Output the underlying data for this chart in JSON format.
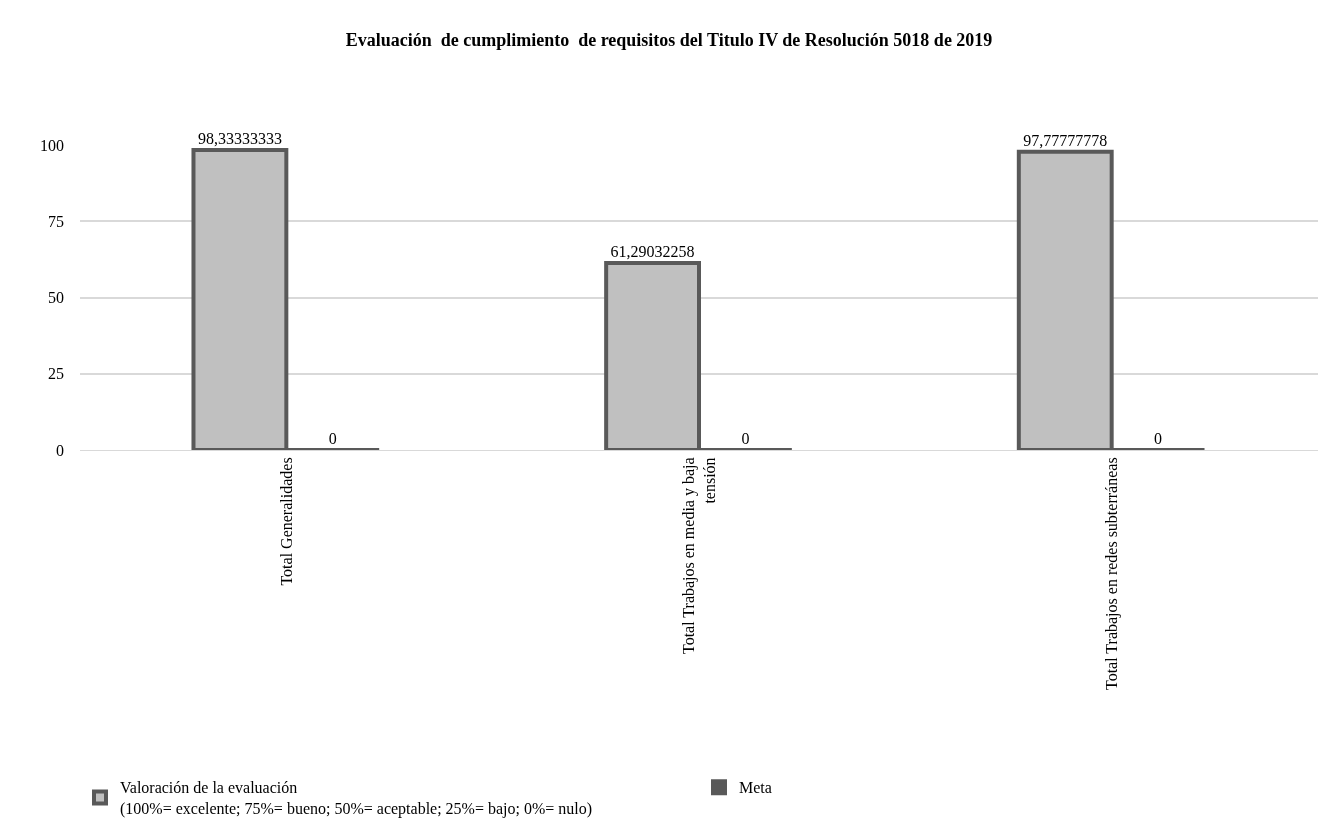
{
  "chart_data": {
    "type": "bar",
    "title": "Evaluación  de cumplimiento  de requisitos del Titulo IV de Resolución 5018 de 2019",
    "categories": [
      "Total Generalidades",
      "Total Trabajos en media y baja\ntensión",
      "Total Trabajos en redes subterráneas"
    ],
    "series": [
      {
        "name": "Valoración de la evaluación\n(100%= excelente; 75%= bueno; 50%= aceptable; 25%= bajo; 0%= nulo)",
        "color": "#c0c0c0",
        "values": [
          98.33333333,
          61.29032258,
          97.77777778
        ],
        "value_labels": [
          "98,33333333",
          "61,29032258",
          "97,77777778"
        ]
      },
      {
        "name": "Meta",
        "color": "#595959",
        "values": [
          0,
          0,
          0
        ],
        "value_labels": [
          "0",
          "0",
          "0"
        ]
      }
    ],
    "ylim": [
      0,
      100
    ],
    "yticks": [
      0,
      25,
      50,
      75,
      100
    ],
    "grid": "y",
    "legend": "bottom"
  }
}
